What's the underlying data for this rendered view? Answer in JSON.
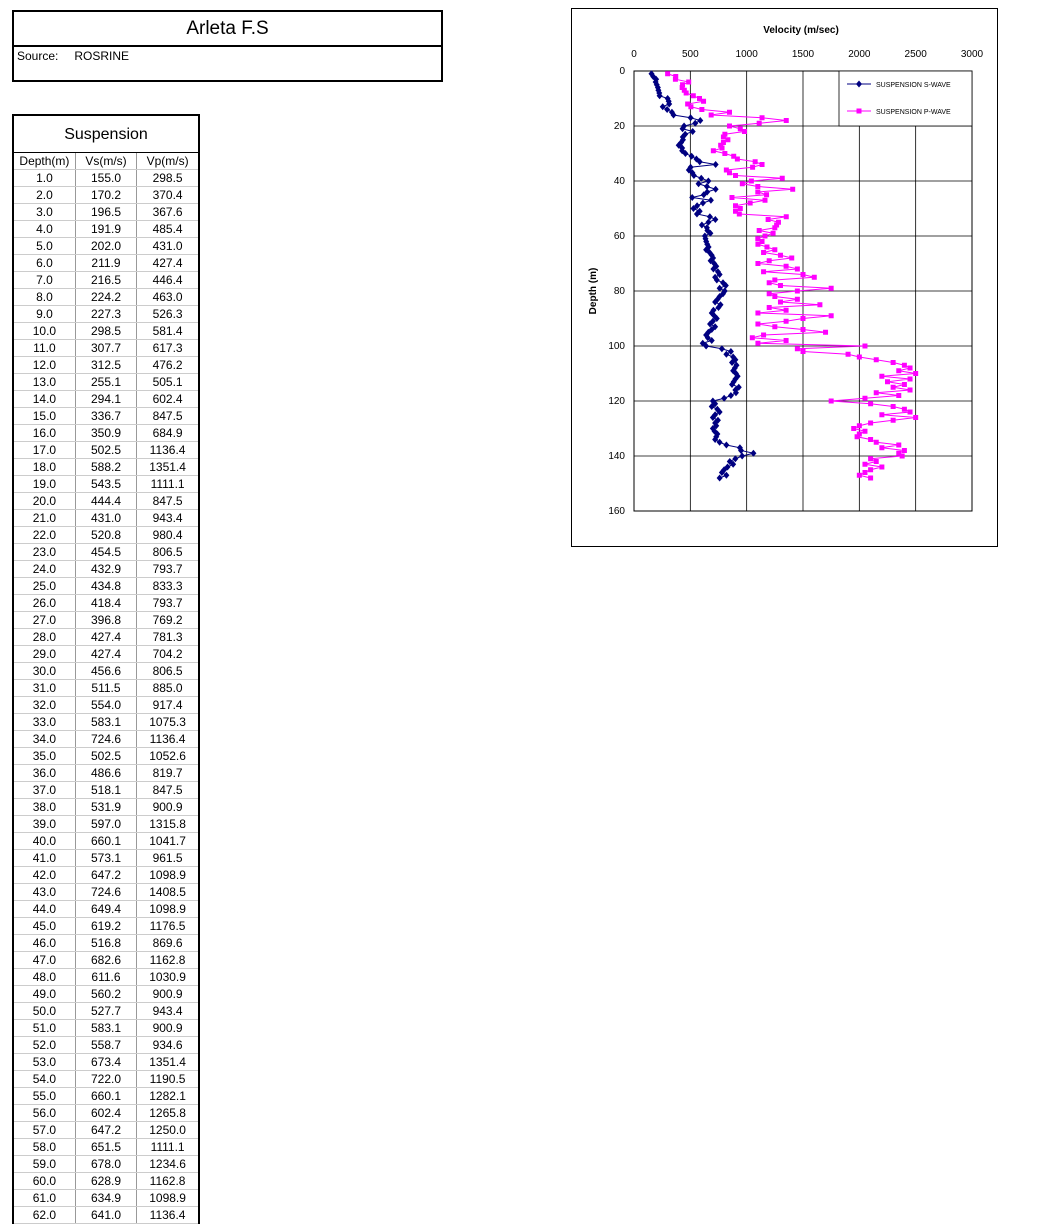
{
  "header": {
    "title": "Arleta F.S",
    "source_label": "Source:",
    "source": "ROSRINE"
  },
  "table": {
    "title": "Suspension",
    "columns": [
      "Depth(m)",
      "Vs(m/s)",
      "Vp(m/s)"
    ],
    "rows": [
      [
        "1.0",
        "155.0",
        "298.5"
      ],
      [
        "2.0",
        "170.2",
        "370.4"
      ],
      [
        "3.0",
        "196.5",
        "367.6"
      ],
      [
        "4.0",
        "191.9",
        "485.4"
      ],
      [
        "5.0",
        "202.0",
        "431.0"
      ],
      [
        "6.0",
        "211.9",
        "427.4"
      ],
      [
        "7.0",
        "216.5",
        "446.4"
      ],
      [
        "8.0",
        "224.2",
        "463.0"
      ],
      [
        "9.0",
        "227.3",
        "526.3"
      ],
      [
        "10.0",
        "298.5",
        "581.4"
      ],
      [
        "11.0",
        "307.7",
        "617.3"
      ],
      [
        "12.0",
        "312.5",
        "476.2"
      ],
      [
        "13.0",
        "255.1",
        "505.1"
      ],
      [
        "14.0",
        "294.1",
        "602.4"
      ],
      [
        "15.0",
        "336.7",
        "847.5"
      ],
      [
        "16.0",
        "350.9",
        "684.9"
      ],
      [
        "17.0",
        "502.5",
        "1136.4"
      ],
      [
        "18.0",
        "588.2",
        "1351.4"
      ],
      [
        "19.0",
        "543.5",
        "1111.1"
      ],
      [
        "20.0",
        "444.4",
        "847.5"
      ],
      [
        "21.0",
        "431.0",
        "943.4"
      ],
      [
        "22.0",
        "520.8",
        "980.4"
      ],
      [
        "23.0",
        "454.5",
        "806.5"
      ],
      [
        "24.0",
        "432.9",
        "793.7"
      ],
      [
        "25.0",
        "434.8",
        "833.3"
      ],
      [
        "26.0",
        "418.4",
        "793.7"
      ],
      [
        "27.0",
        "396.8",
        "769.2"
      ],
      [
        "28.0",
        "427.4",
        "781.3"
      ],
      [
        "29.0",
        "427.4",
        "704.2"
      ],
      [
        "30.0",
        "456.6",
        "806.5"
      ],
      [
        "31.0",
        "511.5",
        "885.0"
      ],
      [
        "32.0",
        "554.0",
        "917.4"
      ],
      [
        "33.0",
        "583.1",
        "1075.3"
      ],
      [
        "34.0",
        "724.6",
        "1136.4"
      ],
      [
        "35.0",
        "502.5",
        "1052.6"
      ],
      [
        "36.0",
        "486.6",
        "819.7"
      ],
      [
        "37.0",
        "518.1",
        "847.5"
      ],
      [
        "38.0",
        "531.9",
        "900.9"
      ],
      [
        "39.0",
        "597.0",
        "1315.8"
      ],
      [
        "40.0",
        "660.1",
        "1041.7"
      ],
      [
        "41.0",
        "573.1",
        "961.5"
      ],
      [
        "42.0",
        "647.2",
        "1098.9"
      ],
      [
        "43.0",
        "724.6",
        "1408.5"
      ],
      [
        "44.0",
        "649.4",
        "1098.9"
      ],
      [
        "45.0",
        "619.2",
        "1176.5"
      ],
      [
        "46.0",
        "516.8",
        "869.6"
      ],
      [
        "47.0",
        "682.6",
        "1162.8"
      ],
      [
        "48.0",
        "611.6",
        "1030.9"
      ],
      [
        "49.0",
        "560.2",
        "900.9"
      ],
      [
        "50.0",
        "527.7",
        "943.4"
      ],
      [
        "51.0",
        "583.1",
        "900.9"
      ],
      [
        "52.0",
        "558.7",
        "934.6"
      ],
      [
        "53.0",
        "673.4",
        "1351.4"
      ],
      [
        "54.0",
        "722.0",
        "1190.5"
      ],
      [
        "55.0",
        "660.1",
        "1282.1"
      ],
      [
        "56.0",
        "602.4",
        "1265.8"
      ],
      [
        "57.0",
        "647.2",
        "1250.0"
      ],
      [
        "58.0",
        "651.5",
        "1111.1"
      ],
      [
        "59.0",
        "678.0",
        "1234.6"
      ],
      [
        "60.0",
        "628.9",
        "1162.8"
      ],
      [
        "61.0",
        "634.9",
        "1098.9"
      ],
      [
        "62.0",
        "641.0",
        "1136.4"
      ]
    ]
  },
  "chart_data": {
    "type": "line",
    "title": "Velocity (m/sec)",
    "y_label": "Depth (m)",
    "xlim": [
      0,
      3000
    ],
    "xticks": [
      0,
      500,
      1000,
      1500,
      2000,
      2500,
      3000
    ],
    "ylim": [
      0,
      160
    ],
    "yticks": [
      0,
      20,
      40,
      60,
      80,
      100,
      120,
      140,
      160
    ],
    "y_reversed": true,
    "grid": true,
    "legend": "upper right",
    "y": [
      1,
      2,
      3,
      4,
      5,
      6,
      7,
      8,
      9,
      10,
      11,
      12,
      13,
      14,
      15,
      16,
      17,
      18,
      19,
      20,
      21,
      22,
      23,
      24,
      25,
      26,
      27,
      28,
      29,
      30,
      31,
      32,
      33,
      34,
      35,
      36,
      37,
      38,
      39,
      40,
      41,
      42,
      43,
      44,
      45,
      46,
      47,
      48,
      49,
      50,
      51,
      52,
      53,
      54,
      55,
      56,
      57,
      58,
      59,
      60,
      61,
      62,
      63,
      64,
      65,
      66,
      67,
      68,
      69,
      70,
      71,
      72,
      73,
      74,
      75,
      76,
      77,
      78,
      79,
      80,
      81,
      82,
      83,
      84,
      85,
      86,
      87,
      88,
      89,
      90,
      91,
      92,
      93,
      94,
      95,
      96,
      97,
      98,
      99,
      100,
      101,
      102,
      103,
      104,
      105,
      106,
      107,
      108,
      109,
      110,
      111,
      112,
      113,
      114,
      115,
      116,
      117,
      118,
      119,
      120,
      121,
      122,
      123,
      124,
      125,
      126,
      127,
      128,
      129,
      130,
      131,
      132,
      133,
      134,
      135,
      136,
      137,
      138,
      139,
      140,
      141,
      142,
      143,
      144,
      145,
      146,
      147,
      148
    ],
    "series": [
      {
        "name": "SUSPENSION S-WAVE",
        "color": "#000080",
        "marker": "diamond",
        "x": [
          155.0,
          170.2,
          196.5,
          191.9,
          202.0,
          211.9,
          216.5,
          224.2,
          227.3,
          298.5,
          307.7,
          312.5,
          255.1,
          294.1,
          336.7,
          350.9,
          502.5,
          588.2,
          543.5,
          444.4,
          431.0,
          520.8,
          454.5,
          432.9,
          434.8,
          418.4,
          396.8,
          427.4,
          427.4,
          456.6,
          511.5,
          554.0,
          583.1,
          724.6,
          502.5,
          486.6,
          518.1,
          531.9,
          597.0,
          660.1,
          573.1,
          647.2,
          724.6,
          649.4,
          619.2,
          516.8,
          682.6,
          611.6,
          560.2,
          527.7,
          583.1,
          558.7,
          673.4,
          722.0,
          660.1,
          602.4,
          647.2,
          651.5,
          678.0,
          628.9,
          634.9,
          641.0,
          650,
          662,
          640,
          671,
          690,
          702,
          680,
          712,
          730,
          705,
          745,
          760,
          720,
          735,
          790,
          815,
          760,
          805,
          790,
          760,
          742,
          720,
          768,
          750,
          705,
          690,
          712,
          735,
          700,
          675,
          720,
          690,
          660,
          640,
          655,
          690,
          610,
          640,
          780,
          860,
          820,
          880,
          900,
          870,
          910,
          895,
          880,
          905,
          920,
          900,
          885,
          870,
          930,
          900,
          905,
          860,
          800,
          700,
          720,
          690,
          740,
          760,
          720,
          700,
          745,
          720,
          730,
          700,
          715,
          740,
          730,
          720,
          760,
          820,
          940,
          950,
          1060,
          960,
          900,
          850,
          880,
          830,
          800,
          780,
          820,
          760
        ]
      },
      {
        "name": "SUSPENSION P-WAVE",
        "color": "#ff00ff",
        "marker": "square",
        "x": [
          298.5,
          370.4,
          367.6,
          485.4,
          431.0,
          427.4,
          446.4,
          463.0,
          526.3,
          581.4,
          617.3,
          476.2,
          505.1,
          602.4,
          847.5,
          684.9,
          1136.4,
          1351.4,
          1111.1,
          847.5,
          943.4,
          980.4,
          806.5,
          793.7,
          833.3,
          793.7,
          769.2,
          781.3,
          704.2,
          806.5,
          885.0,
          917.4,
          1075.3,
          1136.4,
          1052.6,
          819.7,
          847.5,
          900.9,
          1315.8,
          1041.7,
          961.5,
          1098.9,
          1408.5,
          1098.9,
          1176.5,
          869.6,
          1162.8,
          1030.9,
          900.9,
          943.4,
          900.9,
          934.6,
          1351.4,
          1190.5,
          1282.1,
          1265.8,
          1250.0,
          1111.1,
          1234.6,
          1162.8,
          1098.9,
          1136.4,
          1100,
          1180,
          1250,
          1150,
          1300,
          1400,
          1200,
          1100,
          1350,
          1450,
          1150,
          1500,
          1600,
          1250,
          1200,
          1300,
          1750,
          1450,
          1200,
          1250,
          1450,
          1300,
          1650,
          1200,
          1350,
          1100,
          1750,
          1500,
          1350,
          1100,
          1250,
          1500,
          1700,
          1150,
          1050,
          1350,
          1100,
          2050,
          1450,
          1500,
          1900,
          2000,
          2150,
          2300,
          2400,
          2450,
          2350,
          2500,
          2200,
          2450,
          2250,
          2400,
          2300,
          2450,
          2150,
          2350,
          2050,
          1750,
          2100,
          2300,
          2400,
          2450,
          2200,
          2500,
          2300,
          2100,
          2000,
          1950,
          2050,
          2000,
          1980,
          2100,
          2150,
          2350,
          2200,
          2400,
          2350,
          2380,
          2100,
          2150,
          2050,
          2200,
          2100,
          2050,
          2000,
          2100
        ]
      }
    ]
  }
}
